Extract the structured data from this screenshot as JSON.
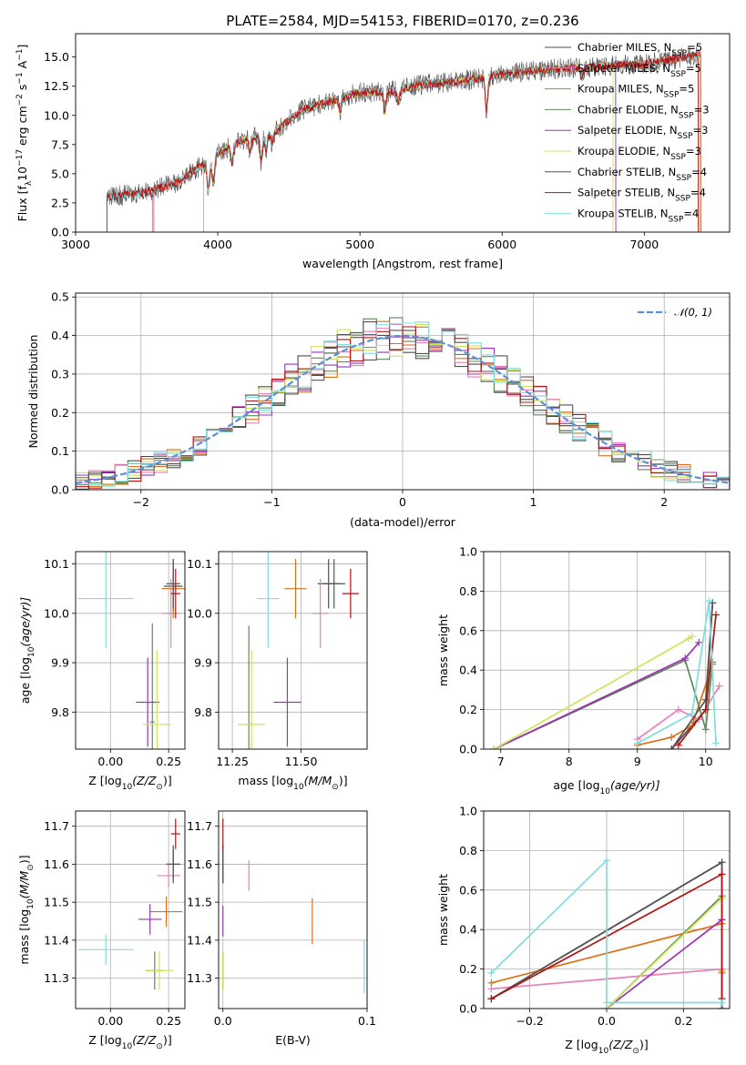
{
  "title": "PLATE=2584, MJD=54153, FIBERID=0170, z=0.236",
  "colors": {
    "grid": "#b0b0b0",
    "gaussian": "#5b8fd6",
    "models": [
      "#4d4d4d",
      "#e87fb8",
      "#d9711c",
      "#5e8a58",
      "#9b33b5",
      "#d0e45c",
      "#555555",
      "#b01515",
      "#7fdde0"
    ]
  },
  "chart_data": [
    {
      "id": "spectrum",
      "type": "line",
      "title": "PLATE=2584, MJD=54153, FIBERID=0170, z=0.236",
      "xlabel": "wavelength [Angstrom, rest frame]",
      "ylabel_pre": "Flux [f",
      "ylabel_sub": "λ",
      "ylabel_mid": "10",
      "ylabel_exp1": "−17",
      "ylabel_post": " erg cm",
      "ylabel_exp2": "−2",
      "ylabel_post2": " s",
      "ylabel_exp3": "−1",
      "ylabel_post3": " A",
      "ylabel_exp4": "−1",
      "ylabel_end": "]",
      "xlim": [
        3000,
        7600
      ],
      "ylim": [
        0,
        17
      ],
      "xticks": [
        "3000",
        "4000",
        "5000",
        "6000",
        "7000"
      ],
      "yticks": [
        "0.0",
        "2.5",
        "5.0",
        "7.5",
        "10.0",
        "12.5",
        "15.0"
      ],
      "legend_placement": "upper-right",
      "series": [
        {
          "name": "Chabrier MILES, N",
          "sub": "SSP",
          "suffix": "=5",
          "start": 3550,
          "end": 7400
        },
        {
          "name": "Salpeter MILES, N",
          "sub": "SSP",
          "suffix": "=5",
          "start": 3550,
          "end": 7400
        },
        {
          "name": "Kroupa MILES, N",
          "sub": "SSP",
          "suffix": "=5",
          "start": 3540,
          "end": 7390
        },
        {
          "name": "Chabrier ELODIE, N",
          "sub": "SSP",
          "suffix": "=3",
          "start": 3900,
          "end": 6800
        },
        {
          "name": "Salpeter ELODIE, N",
          "sub": "SSP",
          "suffix": "=3",
          "start": 3900,
          "end": 6800
        },
        {
          "name": "Kroupa ELODIE, N",
          "sub": "SSP",
          "suffix": "=3",
          "start": 3900,
          "end": 6780
        },
        {
          "name": "Chabrier STELIB, N",
          "sub": "SSP",
          "suffix": "=4",
          "start": 3220,
          "end": 7380
        },
        {
          "name": "Salpeter STELIB, N",
          "sub": "SSP",
          "suffix": "=4",
          "start": 3220,
          "end": 7380
        },
        {
          "name": "Kroupa STELIB, N",
          "sub": "SSP",
          "suffix": "=4",
          "start": 3220,
          "end": 7380
        }
      ],
      "continuum": [
        [
          3220,
          3.0
        ],
        [
          3500,
          3.4
        ],
        [
          3700,
          4.2
        ],
        [
          3900,
          5.8
        ],
        [
          4000,
          6.8
        ],
        [
          4200,
          8.0
        ],
        [
          4400,
          8.6
        ],
        [
          4600,
          10.5
        ],
        [
          4800,
          11.2
        ],
        [
          5000,
          12.0
        ],
        [
          5200,
          12.0
        ],
        [
          5400,
          12.6
        ],
        [
          5600,
          12.8
        ],
        [
          5800,
          13.1
        ],
        [
          6000,
          13.5
        ],
        [
          6200,
          13.8
        ],
        [
          6400,
          14.0
        ],
        [
          6600,
          14.1
        ],
        [
          6800,
          14.3
        ],
        [
          7000,
          14.4
        ],
        [
          7200,
          14.8
        ],
        [
          7400,
          15.2
        ]
      ],
      "absorption": [
        [
          3934,
          2.5
        ],
        [
          3968,
          2.3
        ],
        [
          4101,
          1.5
        ],
        [
          4226,
          1.2
        ],
        [
          4304,
          2.2
        ],
        [
          4340,
          1.4
        ],
        [
          4383,
          1.0
        ],
        [
          4861,
          1.2
        ],
        [
          5175,
          1.6
        ],
        [
          5270,
          1.0
        ],
        [
          5890,
          2.8
        ],
        [
          6563,
          0.8
        ]
      ]
    },
    {
      "id": "residuals",
      "type": "histogram",
      "xlabel": "(data-model)/error",
      "ylabel": "Normed distribution",
      "xlim": [
        -2.5,
        2.5
      ],
      "ylim": [
        0,
        0.51
      ],
      "xticks": [
        "−2",
        "−1",
        "0",
        "1",
        "2"
      ],
      "yticks": [
        "0.0",
        "0.1",
        "0.2",
        "0.3",
        "0.4",
        "0.5"
      ],
      "legend_label": "𝒩(0, 1)",
      "legend_placement": "upper-right",
      "grid": true,
      "bin_width": 0.1
    },
    {
      "id": "z-age",
      "type": "scatter",
      "xlabel_pre": "Z [log",
      "xlabel_sub": "10",
      "xlabel_post": "(Z/Z",
      "xlabel_end": ")]",
      "ylabel_pre": "age  [log",
      "ylabel_sub": "10",
      "ylabel_post": "(age/yr)]",
      "xlim": [
        -0.15,
        0.32
      ],
      "ylim": [
        9.725,
        10.125
      ],
      "xticks": [
        "0.00",
        "0.25"
      ],
      "yticks": [
        "9.8",
        "9.9",
        "10.0",
        "10.1"
      ],
      "points": [
        {
          "x": 0.27,
          "y": 10.055,
          "ex": 0.04,
          "ey": 0.05
        },
        {
          "x": 0.26,
          "y": 10.0,
          "ex": 0.04,
          "ey": 0.07
        },
        {
          "x": 0.27,
          "y": 10.05,
          "ex": 0.05,
          "ey": 0.06
        },
        {
          "x": 0.18,
          "y": 9.78,
          "ex": 0.01,
          "ey": 0.2
        },
        {
          "x": 0.16,
          "y": 9.82,
          "ex": 0.05,
          "ey": 0.09
        },
        {
          "x": 0.2,
          "y": 9.775,
          "ex": 0.06,
          "ey": 0.15
        },
        {
          "x": 0.27,
          "y": 10.06,
          "ex": 0.03,
          "ey": 0.05
        },
        {
          "x": 0.28,
          "y": 10.04,
          "ex": 0.02,
          "ey": 0.05
        },
        {
          "x": -0.02,
          "y": 10.03,
          "ex": 0.12,
          "ey": 0.1
        }
      ]
    },
    {
      "id": "mass-age",
      "type": "scatter",
      "xlabel_pre": "mass [log",
      "xlabel_sub": "10",
      "xlabel_post": "(M/M",
      "xlabel_end": ")]",
      "xlim": [
        11.2,
        11.74
      ],
      "ylim": [
        9.725,
        10.125
      ],
      "xticks": [
        "11.25",
        "11.50"
      ],
      "yticks": [
        "9.8",
        "9.9",
        "10.0",
        "10.1"
      ],
      "points": [
        {
          "x": 11.6,
          "y": 10.06,
          "ex": 0.04,
          "ey": 0.05
        },
        {
          "x": 11.57,
          "y": 10.0,
          "ex": 0.03,
          "ey": 0.07
        },
        {
          "x": 11.48,
          "y": 10.05,
          "ex": 0.04,
          "ey": 0.06
        },
        {
          "x": 11.31,
          "y": 9.775,
          "ex": 0.01,
          "ey": 0.2
        },
        {
          "x": 11.45,
          "y": 9.82,
          "ex": 0.05,
          "ey": 0.09
        },
        {
          "x": 11.32,
          "y": 9.775,
          "ex": 0.05,
          "ey": 0.15
        },
        {
          "x": 11.62,
          "y": 10.06,
          "ex": 0.04,
          "ey": 0.05
        },
        {
          "x": 11.68,
          "y": 10.04,
          "ex": 0.03,
          "ey": 0.05
        },
        {
          "x": 11.38,
          "y": 10.03,
          "ex": 0.04,
          "ey": 0.1
        }
      ]
    },
    {
      "id": "age-weight",
      "type": "line",
      "xlabel_pre": "age  [log",
      "xlabel_sub": "10",
      "xlabel_post": "(age/yr)]",
      "ylabel": "mass weight",
      "xlim": [
        6.75,
        10.35
      ],
      "ylim": [
        0,
        1.0
      ],
      "xticks": [
        "7",
        "8",
        "9",
        "10"
      ],
      "yticks": [
        "0.0",
        "0.2",
        "0.4",
        "0.6",
        "0.8",
        "1.0"
      ],
      "grid": true,
      "series": [
        {
          "x": [
            9.5,
            10.0,
            10.1
          ],
          "y": [
            0.0,
            0.2,
            0.74
          ]
        },
        {
          "x": [
            9.0,
            9.6,
            9.9,
            10.2
          ],
          "y": [
            0.05,
            0.2,
            0.15,
            0.32
          ]
        },
        {
          "x": [
            9.0,
            9.5,
            9.8,
            10.1
          ],
          "y": [
            0.02,
            0.06,
            0.12,
            0.43
          ]
        },
        {
          "x": [
            6.9,
            9.7,
            10.0,
            10.1
          ],
          "y": [
            0.0,
            0.45,
            0.1,
            0.44
          ]
        },
        {
          "x": [
            6.9,
            9.7,
            9.9
          ],
          "y": [
            0.0,
            0.46,
            0.54
          ]
        },
        {
          "x": [
            6.9,
            9.75,
            9.8
          ],
          "y": [
            0.0,
            0.56,
            0.57
          ]
        },
        {
          "x": [
            9.5,
            10.0,
            10.1
          ],
          "y": [
            0.0,
            0.25,
            0.74
          ]
        },
        {
          "x": [
            9.6,
            10.0,
            10.15
          ],
          "y": [
            0.02,
            0.2,
            0.68
          ]
        },
        {
          "x": [
            9.0,
            9.8,
            10.05,
            10.15
          ],
          "y": [
            0.03,
            0.18,
            0.75,
            0.03
          ]
        }
      ]
    },
    {
      "id": "z-mass",
      "type": "scatter",
      "xlabel_pre": "Z [log",
      "xlabel_sub": "10",
      "xlabel_post": "(Z/Z",
      "xlabel_end": ")]",
      "ylabel_pre": "mass [log",
      "ylabel_sub": "10",
      "ylabel_post": "(M/M",
      "ylabel_end": ")]",
      "xlim": [
        -0.15,
        0.32
      ],
      "ylim": [
        11.22,
        11.74
      ],
      "xticks": [
        "0.00",
        "0.25"
      ],
      "yticks": [
        "11.3",
        "11.4",
        "11.5",
        "11.6",
        "11.7"
      ],
      "points": [
        {
          "x": 0.27,
          "y": 11.6,
          "ex": 0.03,
          "ey": 0.04
        },
        {
          "x": 0.25,
          "y": 11.57,
          "ex": 0.05,
          "ey": 0.03
        },
        {
          "x": 0.24,
          "y": 11.475,
          "ex": 0.07,
          "ey": 0.04
        },
        {
          "x": 0.19,
          "y": 11.32,
          "ex": 0.04,
          "ey": 0.05
        },
        {
          "x": 0.17,
          "y": 11.455,
          "ex": 0.05,
          "ey": 0.04
        },
        {
          "x": 0.21,
          "y": 11.32,
          "ex": 0.06,
          "ey": 0.05
        },
        {
          "x": 0.27,
          "y": 11.6,
          "ex": 0.03,
          "ey": 0.05
        },
        {
          "x": 0.28,
          "y": 11.68,
          "ex": 0.02,
          "ey": 0.04
        },
        {
          "x": -0.02,
          "y": 11.375,
          "ex": 0.12,
          "ey": 0.04
        }
      ]
    },
    {
      "id": "ebv-mass",
      "type": "scatter",
      "xlabel": "E(B-V)",
      "xlim": [
        -0.003,
        0.1
      ],
      "ylim": [
        11.22,
        11.74
      ],
      "xticks": [
        "0.0",
        "0.1"
      ],
      "yticks": [
        "11.3",
        "11.4",
        "11.5",
        "11.6",
        "11.7"
      ],
      "points": [
        {
          "x": 0.0,
          "y": 11.6,
          "ex": 0,
          "ey": 0.05
        },
        {
          "x": 0.018,
          "y": 11.57,
          "ex": 0,
          "ey": 0.04
        },
        {
          "x": 0.062,
          "y": 11.45,
          "ex": 0,
          "ey": 0.06
        },
        {
          "x": 0.0,
          "y": 11.32,
          "ex": 0,
          "ey": 0.05
        },
        {
          "x": 0.0,
          "y": 11.45,
          "ex": 0,
          "ey": 0.04
        },
        {
          "x": 0.0,
          "y": 11.32,
          "ex": 0,
          "ey": 0.05
        },
        {
          "x": 0.0,
          "y": 11.6,
          "ex": 0,
          "ey": 0.05
        },
        {
          "x": 0.0,
          "y": 11.68,
          "ex": 0,
          "ey": 0.04
        },
        {
          "x": 0.098,
          "y": 11.33,
          "ex": 0,
          "ey": 0.07
        }
      ]
    },
    {
      "id": "z-weight",
      "type": "line",
      "xlabel_pre": "Z [log",
      "xlabel_sub": "10",
      "xlabel_post": "(Z/Z",
      "xlabel_end": ")]",
      "ylabel": "mass weight",
      "xlim": [
        -0.32,
        0.32
      ],
      "ylim": [
        0,
        1.0
      ],
      "xticks": [
        "−0.2",
        "0.0",
        "0.2"
      ],
      "yticks": [
        "0.0",
        "0.2",
        "0.4",
        "0.6",
        "0.8",
        "1.0"
      ],
      "grid": true,
      "series": [
        {
          "x": [
            -0.3,
            0.3,
            0.3
          ],
          "y": [
            0.05,
            0.74,
            0.0
          ]
        },
        {
          "x": [
            -0.3,
            0.3,
            0.3
          ],
          "y": [
            0.1,
            0.2,
            0.45
          ]
        },
        {
          "x": [
            -0.3,
            0.3,
            0.3
          ],
          "y": [
            0.13,
            0.43,
            0.18
          ]
        },
        {
          "x": [
            0.0,
            0.3,
            0.3
          ],
          "y": [
            0.0,
            0.57,
            0.19
          ]
        },
        {
          "x": [
            0.0,
            0.3,
            0.3
          ],
          "y": [
            0.0,
            0.45,
            0.19
          ]
        },
        {
          "x": [
            0.0,
            0.3,
            0.3
          ],
          "y": [
            0.0,
            0.56,
            0.19
          ]
        },
        {
          "x": [
            -0.3,
            0.3,
            0.3
          ],
          "y": [
            0.05,
            0.74,
            0.0
          ]
        },
        {
          "x": [
            -0.3,
            0.3,
            0.3
          ],
          "y": [
            0.05,
            0.68,
            0.05
          ]
        },
        {
          "x": [
            -0.3,
            0.0,
            0.0,
            0.3
          ],
          "y": [
            0.18,
            0.75,
            0.03,
            0.03
          ]
        }
      ]
    }
  ]
}
